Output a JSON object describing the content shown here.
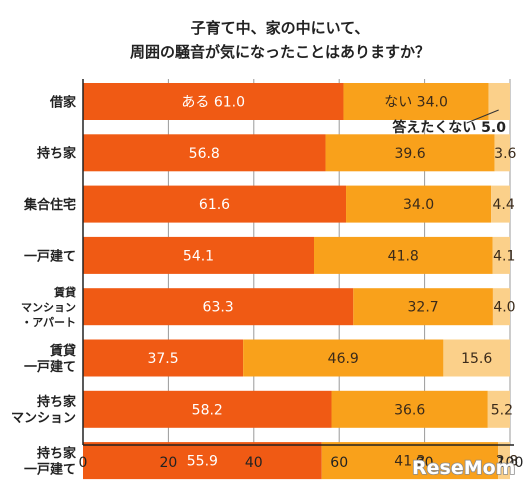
{
  "chart_data": {
    "type": "bar",
    "orientation": "horizontal",
    "stacked": true,
    "title_lines": [
      "子育て中、家の中にいて、",
      "周囲の騒音が気になったことはありますか？"
    ],
    "categories": [
      [
        "借家"
      ],
      [
        "持ち家"
      ],
      [
        "集合住宅"
      ],
      [
        "一戸建て"
      ],
      [
        "賃貸",
        "マンション",
        "・アパート"
      ],
      [
        "賃貸",
        "一戸建て"
      ],
      [
        "持ち家",
        "マンション"
      ],
      [
        "持ち家",
        "一戸建て"
      ]
    ],
    "series": [
      {
        "name": "ある",
        "color": "#f05a14",
        "label_color": "#ffffff",
        "values": [
          61.0,
          56.8,
          61.6,
          54.1,
          63.3,
          37.5,
          58.2,
          55.9
        ]
      },
      {
        "name": "ない",
        "color": "#f9a11b",
        "label_color": "#3a2a1a",
        "values": [
          34.0,
          39.6,
          34.0,
          41.8,
          32.7,
          46.9,
          36.6,
          41.3
        ]
      },
      {
        "name": "答えたくない",
        "color": "#fbd08a",
        "label_color": "#3a2a1a",
        "values": [
          5.0,
          3.6,
          4.4,
          4.1,
          4.0,
          15.6,
          5.2,
          2.8
        ]
      }
    ],
    "value_labels": [
      [
        "ある  61.0",
        "ない  34.0",
        "答えたくない  5.0"
      ],
      [
        "56.8",
        "39.6",
        "3.6"
      ],
      [
        "61.6",
        "34.0",
        "4.4"
      ],
      [
        "54.1",
        "41.8",
        "4.1"
      ],
      [
        "63.3",
        "32.7",
        "4.0"
      ],
      [
        "37.5",
        "46.9",
        "15.6"
      ],
      [
        "58.2",
        "36.6",
        "5.2"
      ],
      [
        "55.9",
        "41.3",
        "2.8"
      ]
    ],
    "xlim": [
      0,
      100
    ],
    "xticks": [
      0,
      20,
      40,
      60,
      80,
      100
    ],
    "x_unit": "(%)",
    "grid": true,
    "legend": "inline-labels"
  },
  "watermark": "ReseMom"
}
